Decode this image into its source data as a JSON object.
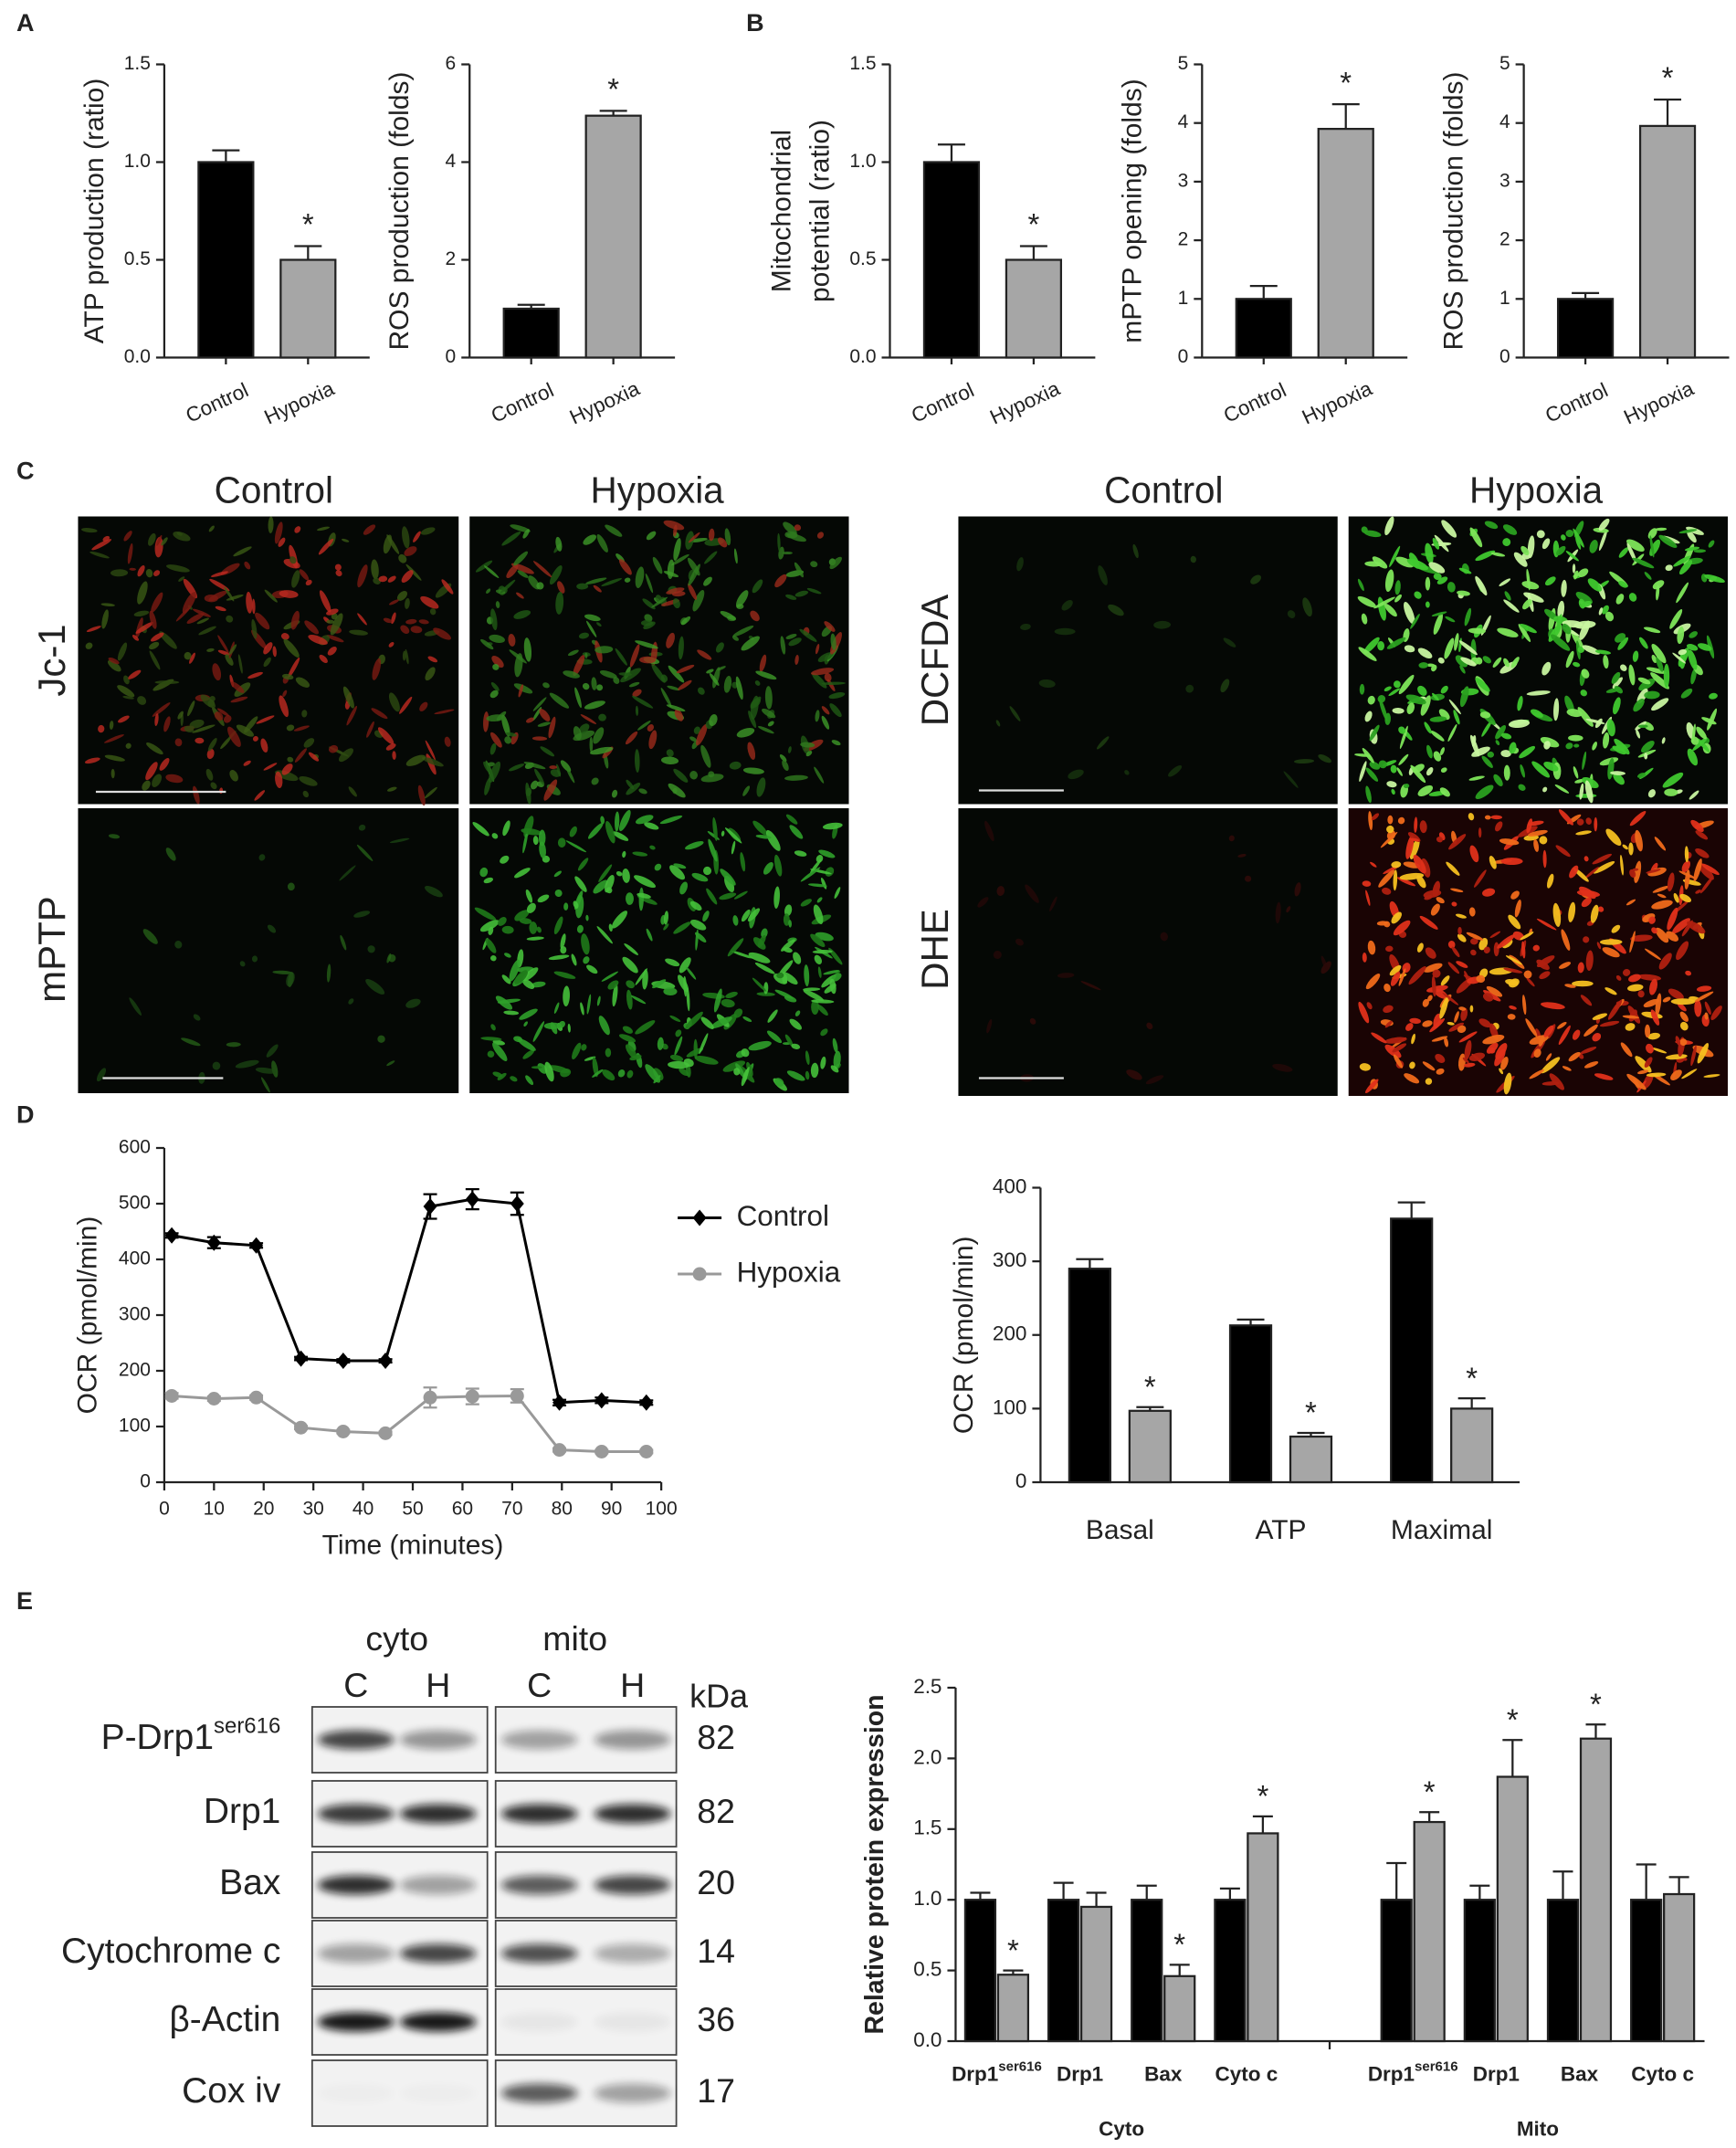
{
  "panel_labels": [
    "A",
    "B",
    "C",
    "D",
    "E"
  ],
  "chart_data": [
    {
      "type": "bar",
      "ylabel": "ATP production (ratio)",
      "categories": [
        "Control",
        "Hypoxia"
      ],
      "values": [
        1,
        0.5
      ],
      "errors": [
        0.06,
        0.07
      ],
      "colors": [
        "#000000",
        "#a6a6a6"
      ],
      "significance": [
        null,
        "*"
      ],
      "ylim": [
        0,
        1.5
      ],
      "yticks": [
        {
          "value": 0,
          "label": "0.0"
        },
        {
          "value": 0.5,
          "label": "0.5"
        },
        {
          "value": 1,
          "label": "1.0"
        },
        {
          "value": 1.5,
          "label": "1.5"
        }
      ]
    },
    {
      "type": "bar",
      "ylabel": "ROS production (folds)",
      "categories": [
        "Control",
        "Hypoxia"
      ],
      "values": [
        1,
        4.95
      ],
      "errors": [
        0.08,
        0.1
      ],
      "colors": [
        "#000000",
        "#a6a6a6"
      ],
      "significance": [
        null,
        "*"
      ],
      "ylim": [
        0,
        6
      ],
      "yticks": [
        0,
        2,
        4,
        6
      ]
    },
    {
      "type": "bar",
      "ylabel": [
        "Mitochondrial",
        "potential (ratio)"
      ],
      "categories": [
        "Control",
        "Hypoxia"
      ],
      "values": [
        1,
        0.5
      ],
      "errors": [
        0.09,
        0.07
      ],
      "colors": [
        "#000000",
        "#a6a6a6"
      ],
      "significance": [
        null,
        "*"
      ],
      "ylim": [
        0,
        1.5
      ],
      "yticks": [
        {
          "value": 0,
          "label": "0.0"
        },
        {
          "value": 0.5,
          "label": "0.5"
        },
        {
          "value": 1,
          "label": "1.0"
        },
        {
          "value": 1.5,
          "label": "1.5"
        }
      ]
    },
    {
      "type": "bar",
      "ylabel": "mPTP opening (folds)",
      "categories": [
        "Control",
        "Hypoxia"
      ],
      "values": [
        1,
        3.9
      ],
      "errors": [
        0.22,
        0.42
      ],
      "colors": [
        "#000000",
        "#a6a6a6"
      ],
      "significance": [
        null,
        "*"
      ],
      "ylim": [
        0,
        5
      ],
      "yticks": [
        0,
        1,
        2,
        3,
        4,
        5
      ]
    },
    {
      "type": "bar",
      "ylabel": "ROS production (folds)",
      "categories": [
        "Control",
        "Hypoxia"
      ],
      "values": [
        1,
        3.95
      ],
      "errors": [
        0.1,
        0.45
      ],
      "colors": [
        "#000000",
        "#a6a6a6"
      ],
      "significance": [
        null,
        "*"
      ],
      "ylim": [
        0,
        5
      ],
      "yticks": [
        0,
        1,
        2,
        3,
        4,
        5
      ]
    },
    {
      "type": "line",
      "xlabel": "Time (minutes)",
      "ylabel": "OCR (pmol/min)",
      "x": [
        1.5,
        10,
        18.5,
        27.5,
        36,
        44.5,
        53.5,
        62,
        71,
        79.5,
        88,
        97
      ],
      "series": [
        {
          "name": "Control",
          "color": "#000000",
          "marker": "diamond",
          "values": [
            443,
            430,
            425,
            222,
            218,
            218,
            495,
            508,
            500,
            143,
            147,
            143
          ],
          "errors": [
            4,
            10,
            4,
            3,
            3,
            3,
            22,
            18,
            20,
            5,
            5,
            4
          ]
        },
        {
          "name": "Hypoxia",
          "color": "#999999",
          "marker": "circle",
          "values": [
            155,
            150,
            152,
            98,
            91,
            88,
            152,
            154,
            155,
            58,
            55,
            55
          ],
          "errors": [
            5,
            4,
            4,
            3,
            3,
            3,
            18,
            14,
            12,
            3,
            3,
            3
          ]
        }
      ],
      "xlim": [
        0,
        100
      ],
      "xticks": [
        0,
        10,
        20,
        30,
        40,
        50,
        60,
        70,
        80,
        90,
        100
      ],
      "ylim": [
        0,
        600
      ],
      "yticks": [
        0,
        100,
        200,
        300,
        400,
        500,
        600
      ]
    },
    {
      "type": "grouped-bar",
      "ylabel": "OCR (pmol/min)",
      "categories": [
        "Basal",
        "ATP",
        "Maximal"
      ],
      "series": [
        {
          "color": "#000000",
          "values": [
            290,
            213,
            358
          ],
          "errors": [
            13,
            8,
            22
          ],
          "significance": [
            null,
            null,
            null
          ]
        },
        {
          "color": "#a6a6a6",
          "values": [
            97,
            62,
            100
          ],
          "errors": [
            5,
            5,
            14
          ],
          "significance": [
            "*",
            "*",
            "*"
          ]
        }
      ],
      "ylim": [
        0,
        400
      ],
      "yticks": [
        0,
        100,
        200,
        300,
        400
      ]
    },
    {
      "type": "grouped-bar",
      "ylabel": "Relative protein expression",
      "categories": [
        "Drp1",
        "Drp1",
        "Bax",
        "Cyto c",
        "Drp1",
        "Drp1",
        "Bax",
        "Cyto c"
      ],
      "category_superscripts": [
        "ser616",
        null,
        null,
        null,
        "ser616",
        null,
        null,
        null
      ],
      "group_labels": [
        "Cyto",
        "Mito"
      ],
      "series": [
        {
          "color": "#000000",
          "values": [
            1,
            1,
            1,
            1,
            1,
            1,
            1,
            1
          ],
          "errors": [
            0.05,
            0.12,
            0.1,
            0.08,
            0.26,
            0.1,
            0.2,
            0.25
          ],
          "significance": [
            null,
            null,
            null,
            null,
            null,
            null,
            null,
            null
          ]
        },
        {
          "color": "#a6a6a6",
          "values": [
            0.47,
            0.95,
            0.46,
            1.47,
            1.55,
            1.87,
            2.14,
            1.04
          ],
          "errors": [
            0.03,
            0.1,
            0.08,
            0.12,
            0.07,
            0.26,
            0.1,
            0.12
          ],
          "significance": [
            "*",
            null,
            "*",
            "*",
            "*",
            "*",
            "*",
            null
          ]
        }
      ],
      "ylim": [
        0,
        2.5
      ],
      "yticks": [
        {
          "value": 0,
          "label": "0.0"
        },
        {
          "value": 0.5,
          "label": "0.5"
        },
        {
          "value": 1,
          "label": "1.0"
        },
        {
          "value": 1.5,
          "label": "1.5"
        },
        {
          "value": 2,
          "label": "2.0"
        },
        {
          "value": 2.5,
          "label": "2.5"
        }
      ]
    }
  ],
  "micrographs": {
    "column_headers": [
      "Control",
      "Hypoxia",
      "Control",
      "Hypoxia"
    ],
    "row_labels": [
      "Jc-1",
      "mPTP",
      "DCFDA",
      "DHE"
    ]
  },
  "blot": {
    "groups": [
      "cyto",
      "mito"
    ],
    "lanes": [
      "C",
      "H",
      "C",
      "H"
    ],
    "kda_label": "kDa",
    "rows": [
      {
        "name": "P-Drp1",
        "superscript": "ser616",
        "kda": 82
      },
      {
        "name": "Drp1",
        "kda": 82
      },
      {
        "name": "Bax",
        "kda": 20
      },
      {
        "name": "Cytochrome c",
        "kda": 14
      },
      {
        "name": "β-Actin",
        "kda": 36
      },
      {
        "name": "Cox iv",
        "kda": 17
      }
    ]
  }
}
